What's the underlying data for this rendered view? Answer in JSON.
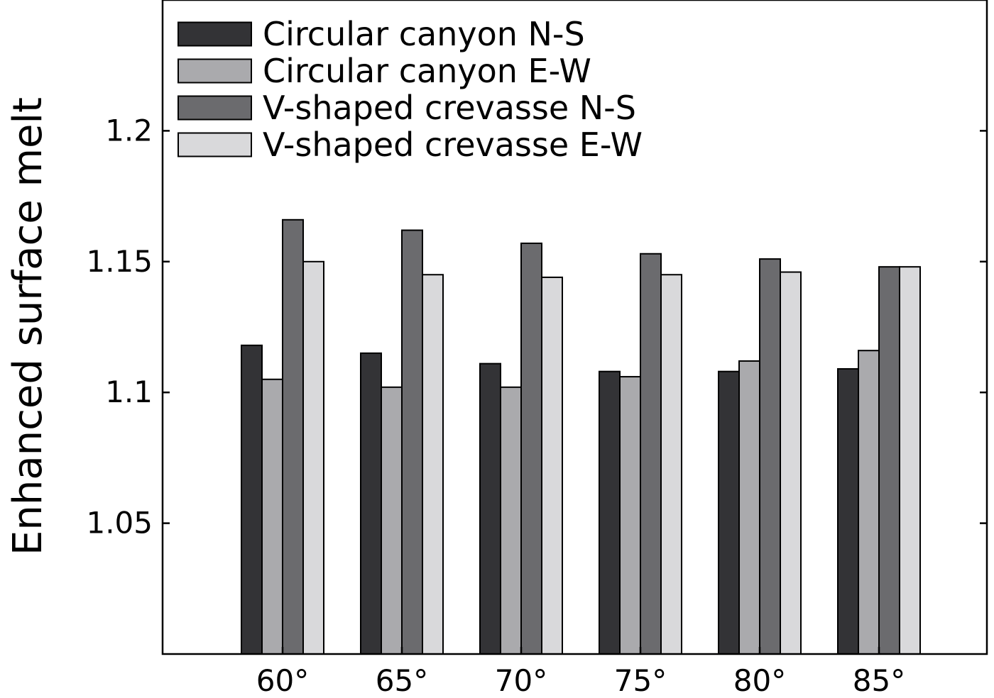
{
  "chart_data": {
    "type": "bar",
    "ylabel": "Enhanced surface melt",
    "xlabel": "",
    "categories": [
      "60°",
      "65°",
      "70°",
      "75°",
      "80°",
      "85°"
    ],
    "ylim": [
      1.0,
      1.25
    ],
    "yticks": [
      1.05,
      1.1,
      1.15,
      1.2
    ],
    "ytick_labels": [
      "1.05",
      "1.1",
      "1.15",
      "1.2"
    ],
    "legend_position": "top-left",
    "grid": false,
    "series": [
      {
        "name": "Circular canyon N-S",
        "color": "#333336",
        "values": [
          1.118,
          1.115,
          1.111,
          1.108,
          1.108,
          1.109
        ]
      },
      {
        "name": "Circular canyon E-W",
        "color": "#aaaaad",
        "values": [
          1.105,
          1.102,
          1.102,
          1.106,
          1.112,
          1.116
        ]
      },
      {
        "name": "V-shaped crevasse N-S",
        "color": "#6b6b6e",
        "values": [
          1.166,
          1.162,
          1.157,
          1.153,
          1.151,
          1.148
        ]
      },
      {
        "name": "V-shaped crevasse E-W",
        "color": "#d9d9db",
        "values": [
          1.15,
          1.145,
          1.144,
          1.145,
          1.146,
          1.148
        ]
      }
    ]
  }
}
